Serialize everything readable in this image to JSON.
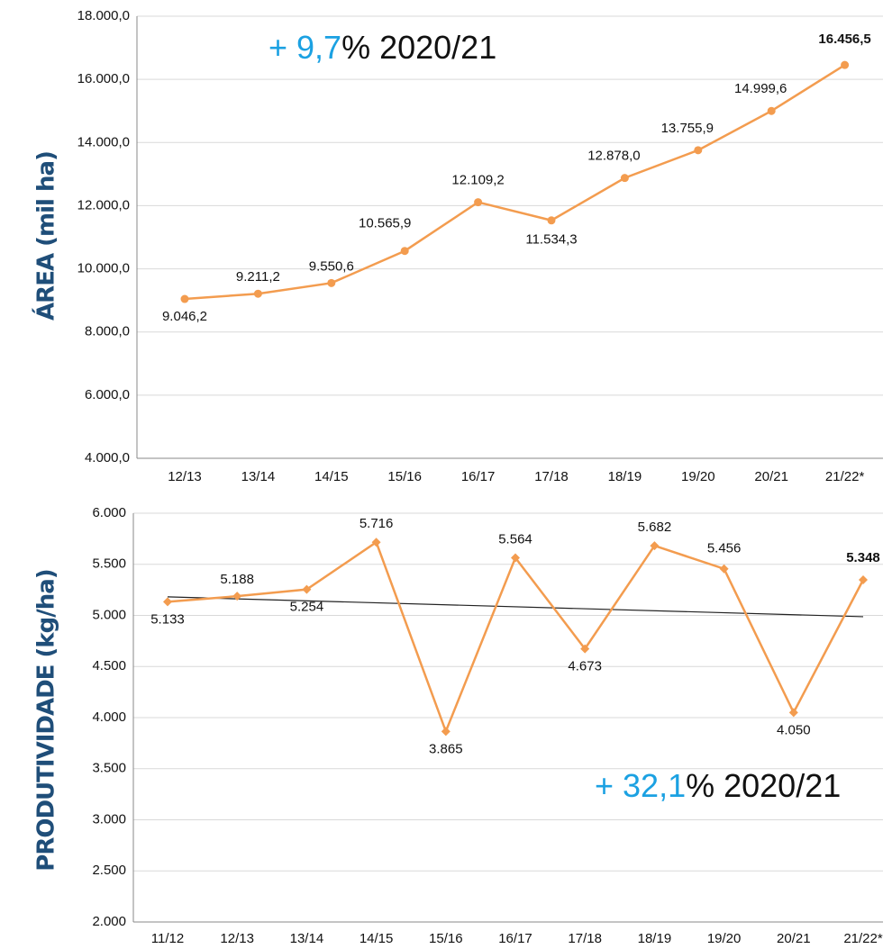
{
  "chart_data": [
    {
      "type": "line",
      "y_label": "ÁREA (mil ha)",
      "annotation": {
        "highlight": "+ 9,7",
        "text": "% 2020/21"
      },
      "categories": [
        "12/13",
        "13/14",
        "14/15",
        "15/16",
        "16/17",
        "17/18",
        "18/19",
        "19/20",
        "20/21",
        "21/22*"
      ],
      "series": [
        {
          "color": "#f39c4f",
          "values": [
            9046.2,
            9211.2,
            9550.6,
            10565.9,
            12109.2,
            11534.3,
            12878.0,
            13755.9,
            14999.6,
            16456.5
          ],
          "value_labels": [
            "9.046,2",
            "9.211,2",
            "9.550,6",
            "10.565,9",
            "12.109,2",
            "11.534,3",
            "12.878,0",
            "13.755,9",
            "14.999,6",
            "16.456,5"
          ]
        }
      ],
      "ylim": [
        4000,
        18000
      ],
      "yticks": [
        {
          "value": 4000,
          "label": "4.000,0"
        },
        {
          "value": 6000,
          "label": "6.000,0"
        },
        {
          "value": 8000,
          "label": "8.000,0"
        },
        {
          "value": 10000,
          "label": "10.000,0"
        },
        {
          "value": 12000,
          "label": "12.000,0"
        },
        {
          "value": 14000,
          "label": "14.000,0"
        },
        {
          "value": 16000,
          "label": "16.000,0"
        },
        {
          "value": 18000,
          "label": "18.000,0"
        }
      ],
      "grid": true,
      "marker": "circle"
    },
    {
      "type": "line",
      "y_label": "PRODUTIVIDADE (kg/ha)",
      "annotation": {
        "highlight": "+ 32,1",
        "text": "% 2020/21"
      },
      "categories": [
        "11/12",
        "12/13",
        "13/14",
        "14/15",
        "15/16",
        "16/17",
        "17/18",
        "18/19",
        "19/20",
        "20/21",
        "21/22*"
      ],
      "series": [
        {
          "color": "#f39c4f",
          "values": [
            5133,
            5188,
            5254,
            5716,
            3865,
            5564,
            4673,
            5682,
            5456,
            4050,
            5348
          ],
          "value_labels": [
            "5.133",
            "5.188",
            "5.254",
            "5.716",
            "3.865",
            "5.564",
            "4.673",
            "5.682",
            "5.456",
            "4.050",
            "5.348"
          ]
        }
      ],
      "trend": {
        "color": "#222222",
        "values": [
          5181.5,
          4987.5
        ]
      },
      "ylim": [
        2000,
        6000
      ],
      "yticks": [
        {
          "value": 2000,
          "label": "2.000"
        },
        {
          "value": 2500,
          "label": "2.500"
        },
        {
          "value": 3000,
          "label": "3.000"
        },
        {
          "value": 3500,
          "label": "3.500"
        },
        {
          "value": 4000,
          "label": "4.000"
        },
        {
          "value": 4500,
          "label": "4.500"
        },
        {
          "value": 5000,
          "label": "5.000"
        },
        {
          "value": 5500,
          "label": "5.500"
        },
        {
          "value": 6000,
          "label": "6.000"
        }
      ],
      "grid": true,
      "marker": "diamond"
    }
  ]
}
